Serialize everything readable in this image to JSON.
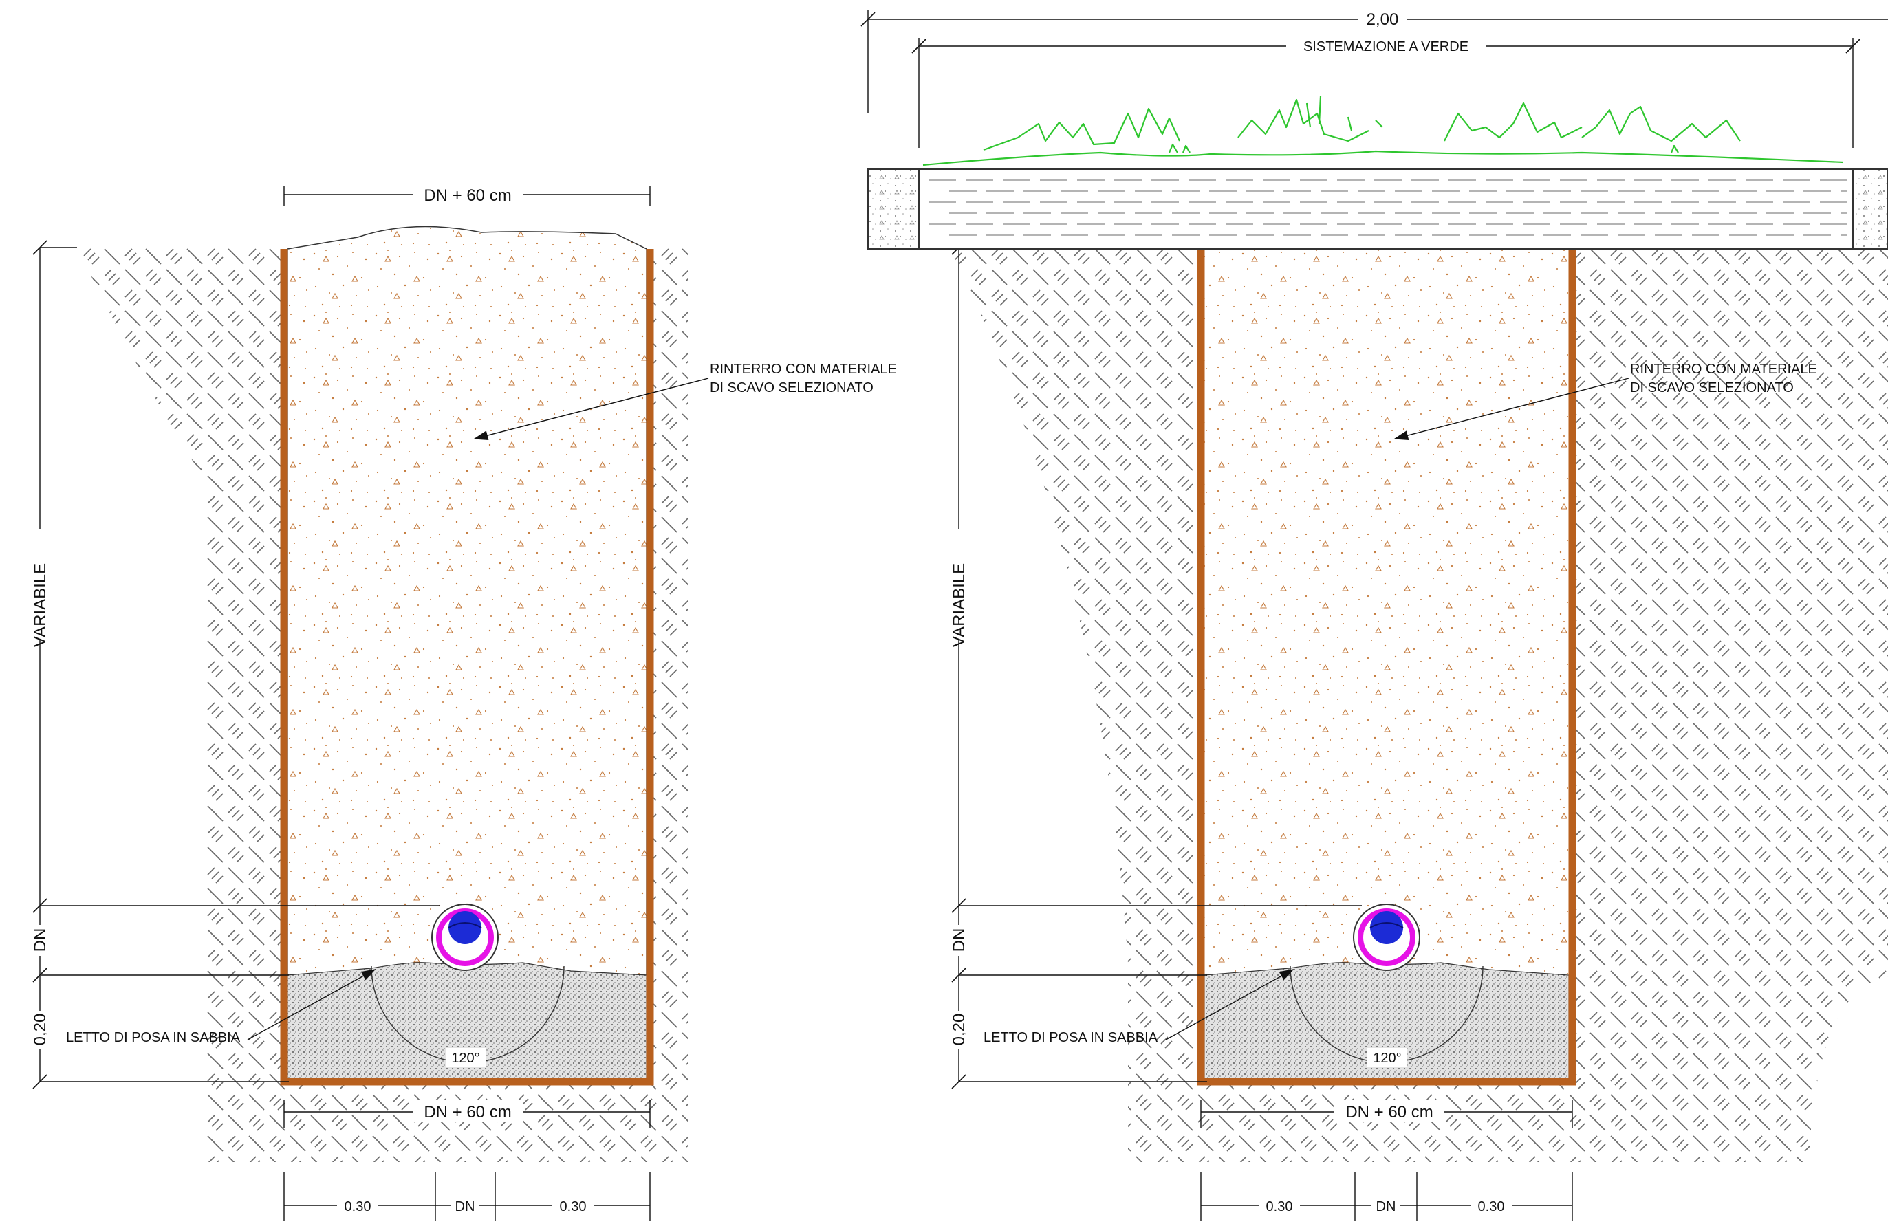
{
  "colors": {
    "wall": "#b8601e",
    "backfill_dots": "#c47a3c",
    "grass": "#2ec62e",
    "pipe_outer": "#e612e6",
    "pipe_inner": "#1c2bd6",
    "sand": "#9a9a9a",
    "soil_hatch": "#666666",
    "line": "#111111"
  },
  "dims": {
    "total_width": "2,00",
    "landscaping": "SISTEMAZIONE A VERDE",
    "trench_width": "DN + 60 cm",
    "variable": "VARIABILE",
    "dn": "DN",
    "bed_thickness": "0,20",
    "side_clearance": "0.30"
  },
  "labels": {
    "backfill_line1": "RINTERRO CON MATERIALE",
    "backfill_line2": "DI SCAVO SELEZIONATO",
    "bedding": "LETTO DI POSA IN SABBIA",
    "angle": "120°"
  },
  "icons": {
    "pipe": "pipe-section-icon",
    "grass": "grass-vegetation-icon",
    "arrow": "arrow-tick-icon"
  }
}
